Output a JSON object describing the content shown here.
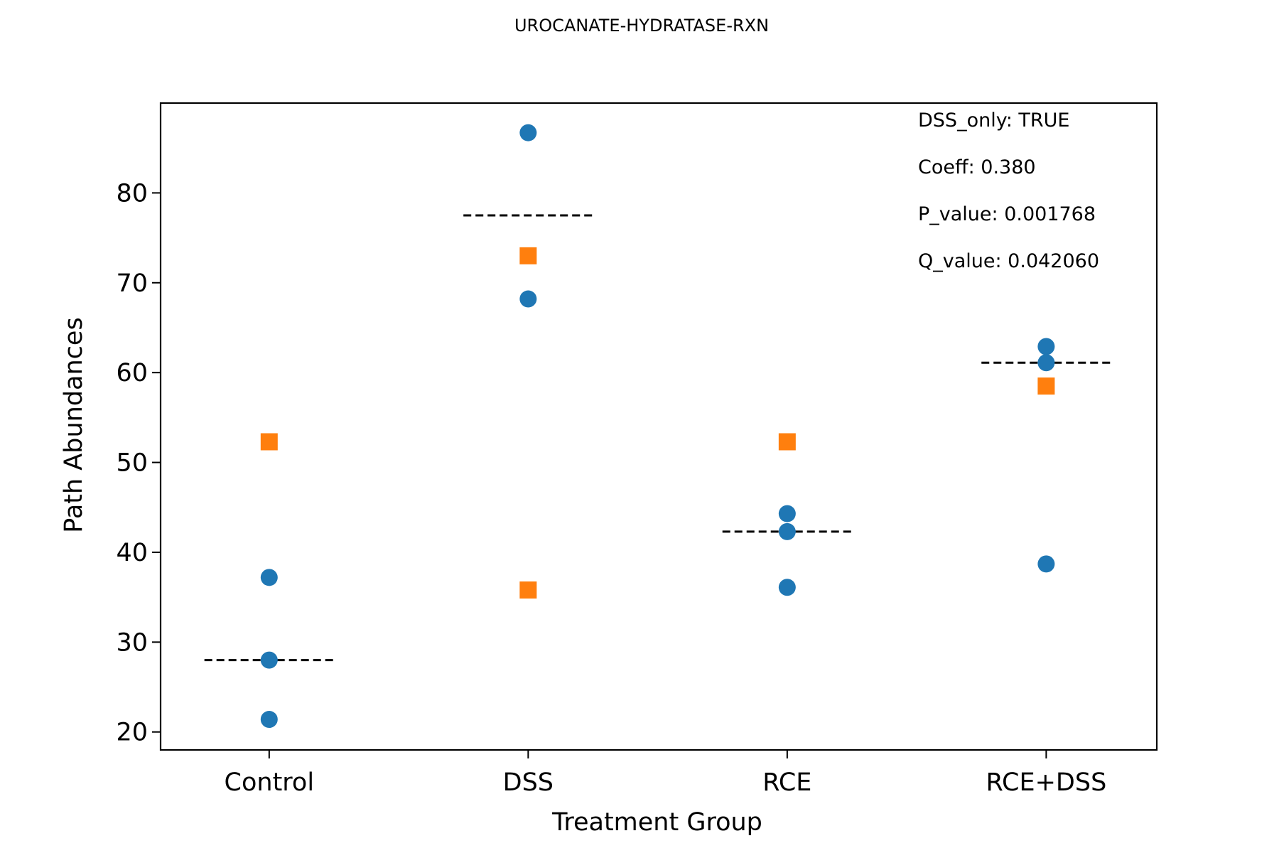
{
  "chart_data": {
    "type": "scatter",
    "title": "UROCANATE-HYDRATASE-RXN",
    "xlabel": "Treatment Group",
    "ylabel": "Path Abundances",
    "categories": [
      "Control",
      "DSS",
      "RCE",
      "RCE+DSS"
    ],
    "ylim": [
      18,
      90
    ],
    "yticks": [
      20,
      30,
      40,
      50,
      60,
      70,
      80
    ],
    "grid": false,
    "legend": "none",
    "series": [
      {
        "marker": "circle",
        "color": "#1f77b4",
        "points": [
          {
            "category": "Control",
            "y": 37.2
          },
          {
            "category": "Control",
            "y": 28.0
          },
          {
            "category": "Control",
            "y": 21.4
          },
          {
            "category": "DSS",
            "y": 86.7
          },
          {
            "category": "DSS",
            "y": 68.2
          },
          {
            "category": "RCE",
            "y": 44.3
          },
          {
            "category": "RCE",
            "y": 42.3
          },
          {
            "category": "RCE",
            "y": 36.1
          },
          {
            "category": "RCE+DSS",
            "y": 62.9
          },
          {
            "category": "RCE+DSS",
            "y": 61.1
          },
          {
            "category": "RCE+DSS",
            "y": 38.7
          }
        ]
      },
      {
        "marker": "square",
        "color": "#ff7f0e",
        "points": [
          {
            "category": "Control",
            "y": 52.3
          },
          {
            "category": "DSS",
            "y": 73.0
          },
          {
            "category": "DSS",
            "y": 35.8
          },
          {
            "category": "RCE",
            "y": 52.3
          },
          {
            "category": "RCE+DSS",
            "y": 58.5
          }
        ]
      }
    ],
    "group_means": [
      {
        "category": "Control",
        "y": 28.0
      },
      {
        "category": "DSS",
        "y": 77.5
      },
      {
        "category": "RCE",
        "y": 42.3
      },
      {
        "category": "RCE+DSS",
        "y": 61.1
      }
    ],
    "annotations": [
      "DSS_only: TRUE",
      "Coeff: 0.380",
      "P_value: 0.001768",
      "Q_value: 0.042060"
    ]
  }
}
